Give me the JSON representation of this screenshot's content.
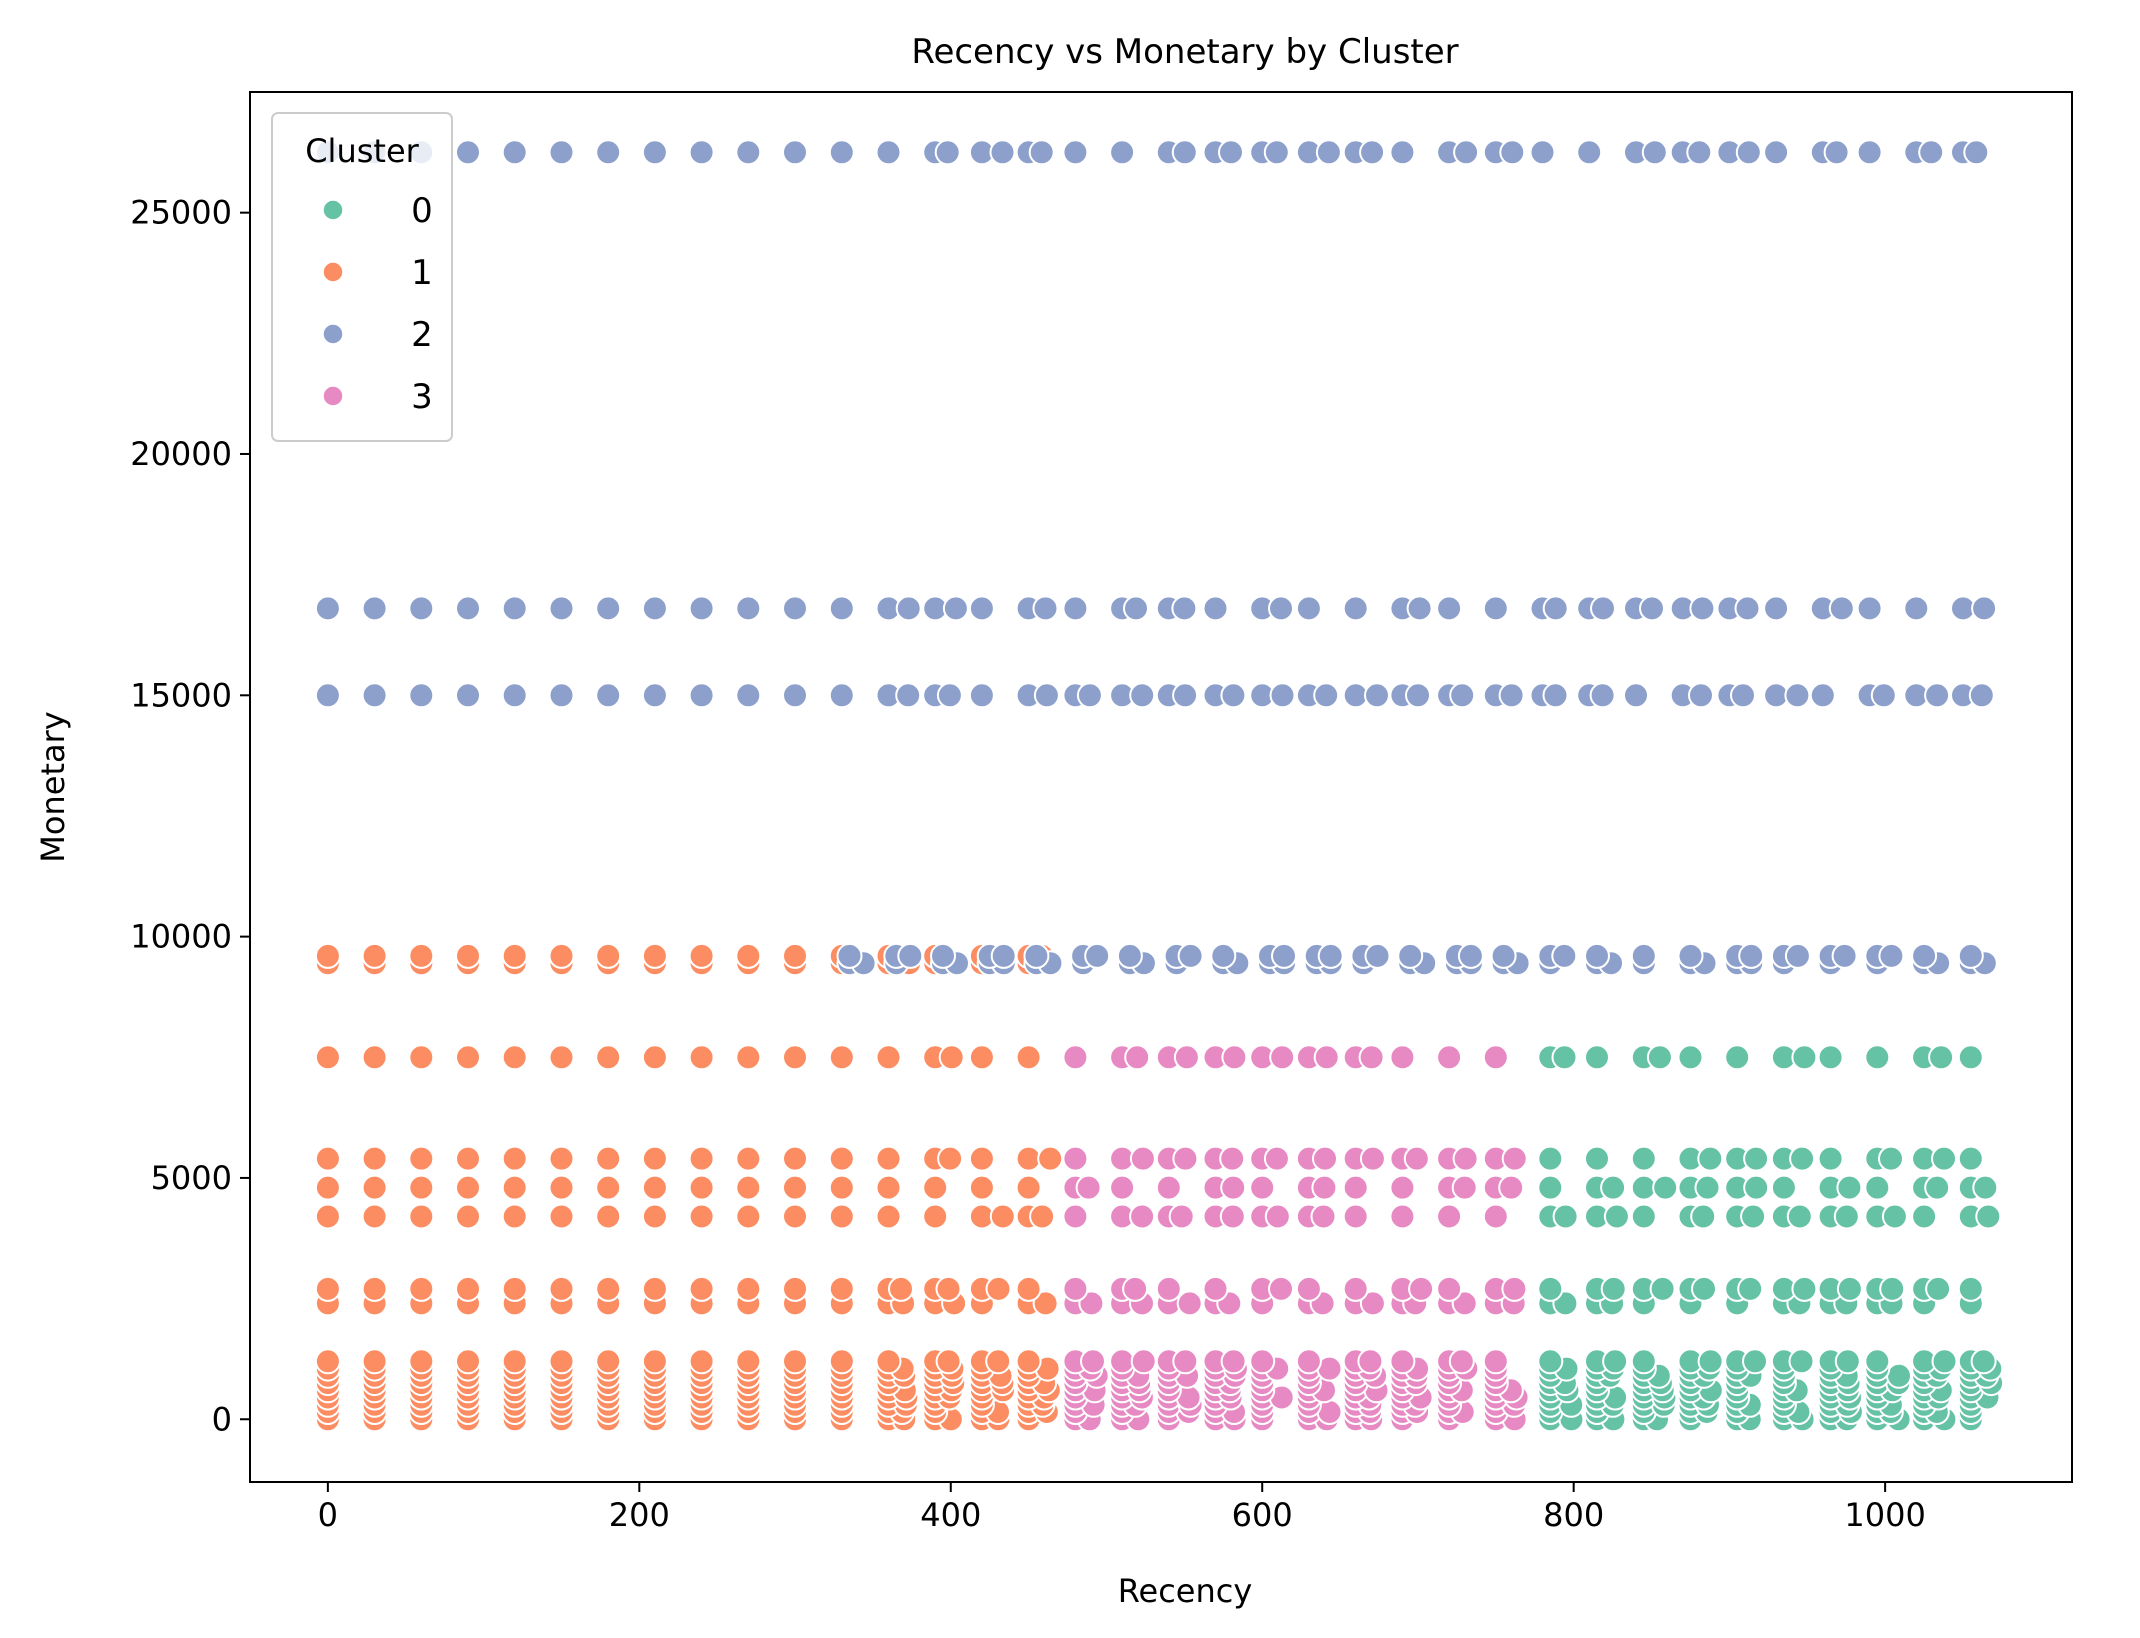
{
  "chart_data": {
    "type": "scatter",
    "title": "Recency vs Monetary by Cluster",
    "xlabel": "Recency",
    "ylabel": "Monetary",
    "xlim": [
      -50,
      1120
    ],
    "ylim": [
      -1300,
      27500
    ],
    "xticks": [
      0,
      200,
      400,
      600,
      800,
      1000
    ],
    "yticks": [
      0,
      5000,
      10000,
      15000,
      20000,
      25000
    ],
    "grid": false,
    "legend": {
      "title": "Cluster",
      "placement": "top-left"
    },
    "series": [
      {
        "name": "0",
        "color": "#66c2a5",
        "x_range": [
          785,
          1065
        ],
        "x_step": 30,
        "y_levels": [
          0,
          150,
          300,
          450,
          600,
          750,
          900,
          1050,
          1200,
          2400,
          2700,
          4200,
          4800,
          5400,
          7500
        ],
        "extra_points": [
          [
            1060,
            9450
          ]
        ]
      },
      {
        "name": "1",
        "color": "#fc8d62",
        "x_range": [
          0,
          475
        ],
        "x_step": 30,
        "y_levels": [
          0,
          150,
          300,
          450,
          600,
          750,
          900,
          1050,
          1200,
          2400,
          2700,
          4200,
          4800,
          5400,
          7500,
          9450,
          9600
        ]
      },
      {
        "name": "2",
        "color": "#8da0cb",
        "x_range": [
          0,
          1065
        ],
        "x_step": 30,
        "y_levels": [
          15000,
          16800,
          26250
        ],
        "extra_range": [
          335,
          1065
        ],
        "extra_levels": [
          9450,
          9600
        ]
      },
      {
        "name": "3",
        "color": "#e78ac3",
        "x_range": [
          480,
          760
        ],
        "x_step": 30,
        "y_levels": [
          0,
          150,
          300,
          450,
          600,
          750,
          900,
          1050,
          1200,
          2400,
          2700,
          4200,
          4800,
          5400,
          7500
        ]
      }
    ]
  }
}
